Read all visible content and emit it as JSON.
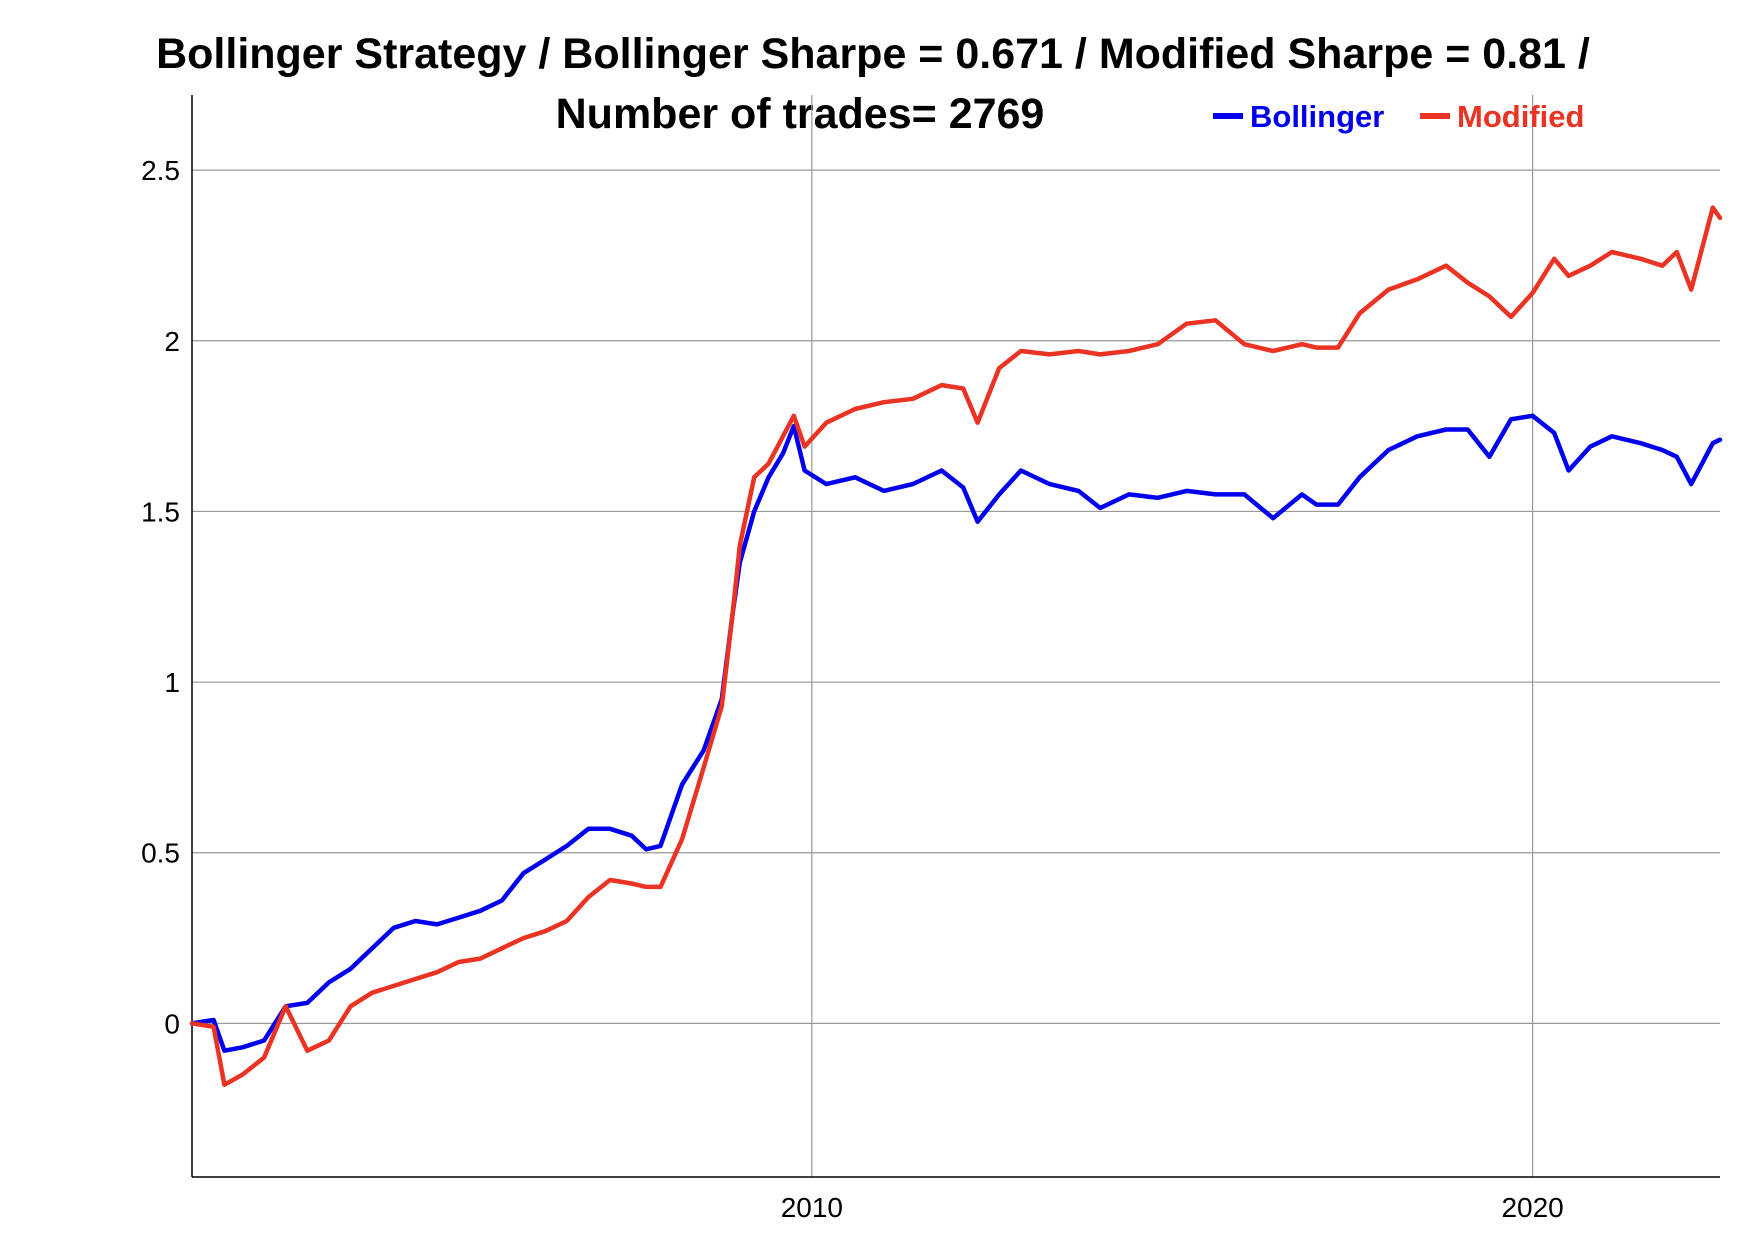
{
  "chart_data": {
    "type": "line",
    "title_line1": "Bollinger Strategy / Bollinger Sharpe = 0.671 / Modified Sharpe = 0.81 /",
    "title_line2": "Number of trades= 2769",
    "xlabel": "",
    "ylabel": "",
    "x_range": [
      2001.4,
      2022.6
    ],
    "ylim": [
      -0.45,
      2.72
    ],
    "x_ticks": [
      {
        "value": 2010,
        "label": "2010"
      },
      {
        "value": 2020,
        "label": "2020"
      }
    ],
    "y_ticks": [
      {
        "value": 0,
        "label": "0"
      },
      {
        "value": 0.5,
        "label": "0.5"
      },
      {
        "value": 1,
        "label": "1"
      },
      {
        "value": 1.5,
        "label": "1.5"
      },
      {
        "value": 2,
        "label": "2"
      },
      {
        "value": 2.5,
        "label": "2.5"
      }
    ],
    "grid": true,
    "legend_position": "top-right",
    "series": [
      {
        "name": "Bollinger",
        "color": "#0000ee",
        "points": [
          [
            2001.4,
            0.0
          ],
          [
            2001.7,
            0.01
          ],
          [
            2001.85,
            -0.08
          ],
          [
            2002.1,
            -0.07
          ],
          [
            2002.4,
            -0.05
          ],
          [
            2002.7,
            0.05
          ],
          [
            2003.0,
            0.06
          ],
          [
            2003.3,
            0.12
          ],
          [
            2003.6,
            0.16
          ],
          [
            2003.9,
            0.22
          ],
          [
            2004.2,
            0.28
          ],
          [
            2004.5,
            0.3
          ],
          [
            2004.8,
            0.29
          ],
          [
            2005.1,
            0.31
          ],
          [
            2005.4,
            0.33
          ],
          [
            2005.7,
            0.36
          ],
          [
            2006.0,
            0.44
          ],
          [
            2006.3,
            0.48
          ],
          [
            2006.6,
            0.52
          ],
          [
            2006.9,
            0.57
          ],
          [
            2007.2,
            0.57
          ],
          [
            2007.5,
            0.55
          ],
          [
            2007.7,
            0.51
          ],
          [
            2007.9,
            0.52
          ],
          [
            2008.2,
            0.7
          ],
          [
            2008.5,
            0.8
          ],
          [
            2008.75,
            0.95
          ],
          [
            2008.9,
            1.2
          ],
          [
            2009.0,
            1.35
          ],
          [
            2009.2,
            1.5
          ],
          [
            2009.4,
            1.6
          ],
          [
            2009.6,
            1.67
          ],
          [
            2009.75,
            1.75
          ],
          [
            2009.9,
            1.62
          ],
          [
            2010.2,
            1.58
          ],
          [
            2010.6,
            1.6
          ],
          [
            2011.0,
            1.56
          ],
          [
            2011.4,
            1.58
          ],
          [
            2011.8,
            1.62
          ],
          [
            2012.1,
            1.57
          ],
          [
            2012.3,
            1.47
          ],
          [
            2012.6,
            1.55
          ],
          [
            2012.9,
            1.62
          ],
          [
            2013.3,
            1.58
          ],
          [
            2013.7,
            1.56
          ],
          [
            2014.0,
            1.51
          ],
          [
            2014.4,
            1.55
          ],
          [
            2014.8,
            1.54
          ],
          [
            2015.2,
            1.56
          ],
          [
            2015.6,
            1.55
          ],
          [
            2016.0,
            1.55
          ],
          [
            2016.4,
            1.48
          ],
          [
            2016.8,
            1.55
          ],
          [
            2017.0,
            1.52
          ],
          [
            2017.3,
            1.52
          ],
          [
            2017.6,
            1.6
          ],
          [
            2018.0,
            1.68
          ],
          [
            2018.4,
            1.72
          ],
          [
            2018.8,
            1.74
          ],
          [
            2019.1,
            1.74
          ],
          [
            2019.4,
            1.66
          ],
          [
            2019.7,
            1.77
          ],
          [
            2020.0,
            1.78
          ],
          [
            2020.3,
            1.73
          ],
          [
            2020.5,
            1.62
          ],
          [
            2020.8,
            1.69
          ],
          [
            2021.1,
            1.72
          ],
          [
            2021.5,
            1.7
          ],
          [
            2021.8,
            1.68
          ],
          [
            2022.0,
            1.66
          ],
          [
            2022.2,
            1.58
          ],
          [
            2022.5,
            1.7
          ],
          [
            2022.6,
            1.71
          ]
        ]
      },
      {
        "name": "Modified",
        "color": "#ea3323",
        "points": [
          [
            2001.4,
            0.0
          ],
          [
            2001.7,
            -0.01
          ],
          [
            2001.85,
            -0.18
          ],
          [
            2002.1,
            -0.15
          ],
          [
            2002.4,
            -0.1
          ],
          [
            2002.7,
            0.05
          ],
          [
            2003.0,
            -0.08
          ],
          [
            2003.3,
            -0.05
          ],
          [
            2003.6,
            0.05
          ],
          [
            2003.9,
            0.09
          ],
          [
            2004.2,
            0.11
          ],
          [
            2004.5,
            0.13
          ],
          [
            2004.8,
            0.15
          ],
          [
            2005.1,
            0.18
          ],
          [
            2005.4,
            0.19
          ],
          [
            2005.7,
            0.22
          ],
          [
            2006.0,
            0.25
          ],
          [
            2006.3,
            0.27
          ],
          [
            2006.6,
            0.3
          ],
          [
            2006.9,
            0.37
          ],
          [
            2007.2,
            0.42
          ],
          [
            2007.5,
            0.41
          ],
          [
            2007.7,
            0.4
          ],
          [
            2007.9,
            0.4
          ],
          [
            2008.2,
            0.54
          ],
          [
            2008.5,
            0.75
          ],
          [
            2008.75,
            0.93
          ],
          [
            2008.9,
            1.2
          ],
          [
            2009.0,
            1.4
          ],
          [
            2009.2,
            1.6
          ],
          [
            2009.4,
            1.64
          ],
          [
            2009.6,
            1.72
          ],
          [
            2009.75,
            1.78
          ],
          [
            2009.9,
            1.69
          ],
          [
            2010.2,
            1.76
          ],
          [
            2010.6,
            1.8
          ],
          [
            2011.0,
            1.82
          ],
          [
            2011.4,
            1.83
          ],
          [
            2011.8,
            1.87
          ],
          [
            2012.1,
            1.86
          ],
          [
            2012.3,
            1.76
          ],
          [
            2012.6,
            1.92
          ],
          [
            2012.9,
            1.97
          ],
          [
            2013.3,
            1.96
          ],
          [
            2013.7,
            1.97
          ],
          [
            2014.0,
            1.96
          ],
          [
            2014.4,
            1.97
          ],
          [
            2014.8,
            1.99
          ],
          [
            2015.2,
            2.05
          ],
          [
            2015.6,
            2.06
          ],
          [
            2016.0,
            1.99
          ],
          [
            2016.4,
            1.97
          ],
          [
            2016.8,
            1.99
          ],
          [
            2017.0,
            1.98
          ],
          [
            2017.3,
            1.98
          ],
          [
            2017.6,
            2.08
          ],
          [
            2018.0,
            2.15
          ],
          [
            2018.4,
            2.18
          ],
          [
            2018.8,
            2.22
          ],
          [
            2019.1,
            2.17
          ],
          [
            2019.4,
            2.13
          ],
          [
            2019.7,
            2.07
          ],
          [
            2020.0,
            2.14
          ],
          [
            2020.3,
            2.24
          ],
          [
            2020.5,
            2.19
          ],
          [
            2020.8,
            2.22
          ],
          [
            2021.1,
            2.26
          ],
          [
            2021.5,
            2.24
          ],
          [
            2021.8,
            2.22
          ],
          [
            2022.0,
            2.26
          ],
          [
            2022.2,
            2.15
          ],
          [
            2022.5,
            2.39
          ],
          [
            2022.6,
            2.36
          ]
        ]
      }
    ]
  }
}
